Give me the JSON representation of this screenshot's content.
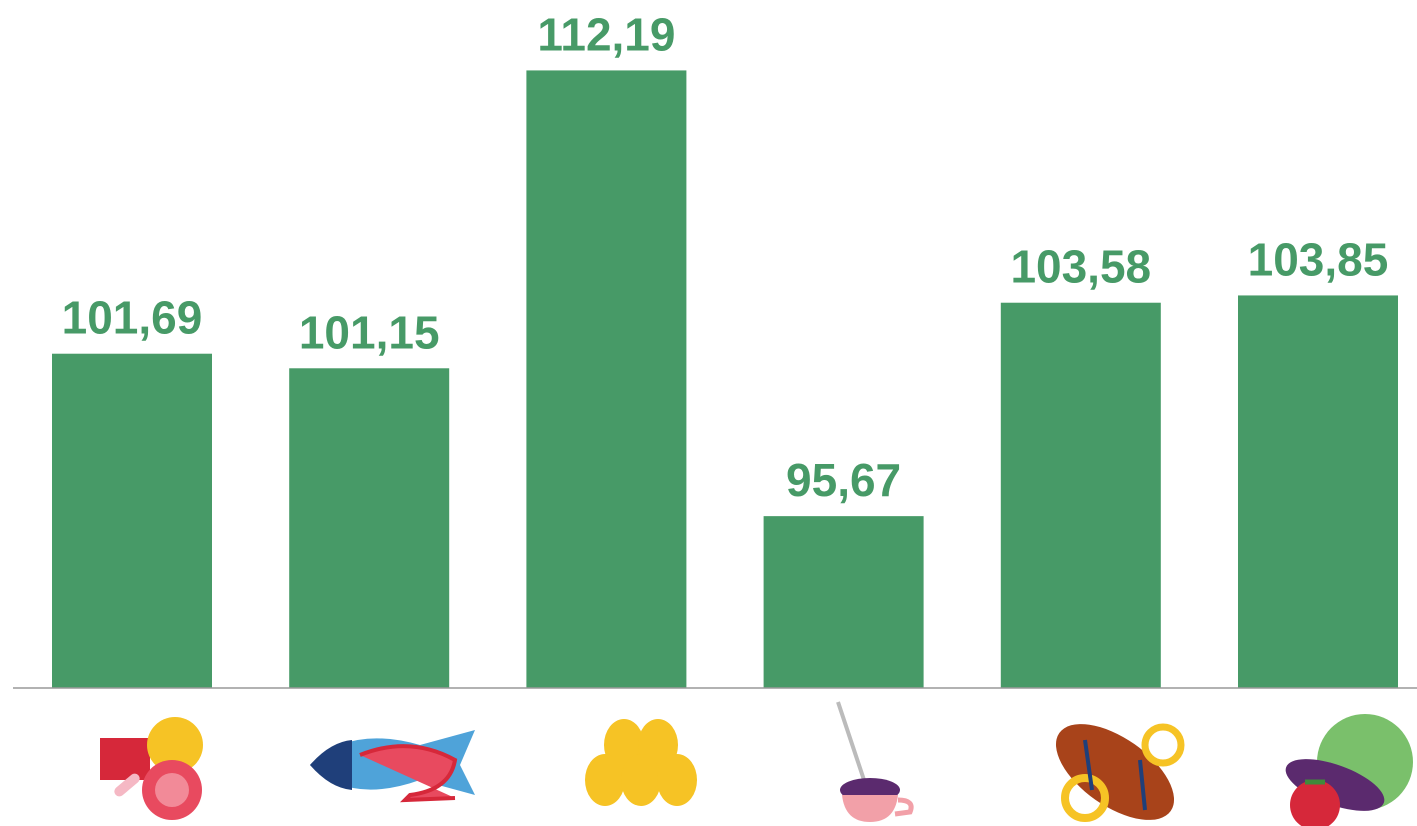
{
  "chart_data": {
    "type": "bar",
    "categories": [
      null,
      null,
      null,
      null,
      null,
      null
    ],
    "values": [
      101.69,
      101.15,
      112.19,
      95.67,
      103.58,
      103.85
    ],
    "value_labels": [
      "101,69",
      "101,15",
      "112,19",
      "95,67",
      "103,58",
      "103,85"
    ],
    "color": "#479a67",
    "ylim": [
      89.3,
      114.8
    ]
  }
}
